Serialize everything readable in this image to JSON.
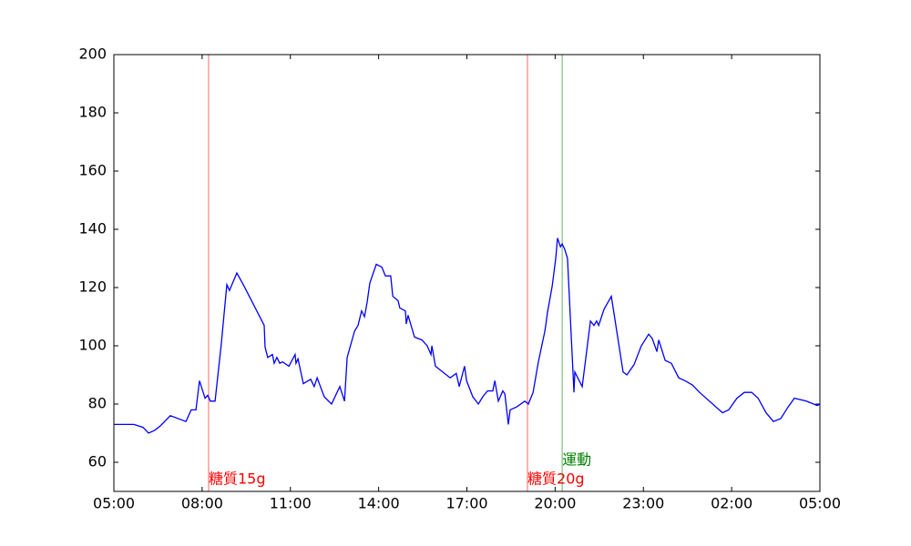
{
  "chart_data": {
    "type": "line",
    "xlim": [
      5,
      29
    ],
    "xticks": [
      {
        "value": 5,
        "label": "05:00"
      },
      {
        "value": 8,
        "label": "08:00"
      },
      {
        "value": 11,
        "label": "11:00"
      },
      {
        "value": 14,
        "label": "14:00"
      },
      {
        "value": 17,
        "label": "17:00"
      },
      {
        "value": 20,
        "label": "20:00"
      },
      {
        "value": 23,
        "label": "23:00"
      },
      {
        "value": 26,
        "label": "02:00"
      },
      {
        "value": 29,
        "label": "05:00"
      }
    ],
    "ylim": [
      50,
      200
    ],
    "yticks": [
      60,
      80,
      100,
      120,
      140,
      160,
      180,
      200
    ],
    "x": [
      5.0,
      5.68,
      5.99,
      6.18,
      6.39,
      6.58,
      6.92,
      7.45,
      7.63,
      7.79,
      7.91,
      8.1,
      8.19,
      8.28,
      8.44,
      8.65,
      8.84,
      8.93,
      9.18,
      9.4,
      9.68,
      10.11,
      10.14,
      10.23,
      10.39,
      10.45,
      10.54,
      10.64,
      10.73,
      10.95,
      11.16,
      11.19,
      11.26,
      11.44,
      11.69,
      11.81,
      11.91,
      12.15,
      12.4,
      12.68,
      12.84,
      12.93,
      13.18,
      13.3,
      13.42,
      13.52,
      13.61,
      13.7,
      13.92,
      14.11,
      14.23,
      14.41,
      14.48,
      14.66,
      14.72,
      14.91,
      14.94,
      15.0,
      15.22,
      15.47,
      15.65,
      15.78,
      15.81,
      15.93,
      16.43,
      16.64,
      16.74,
      16.92,
      16.99,
      17.2,
      17.39,
      17.54,
      17.7,
      17.88,
      17.95,
      18.07,
      18.22,
      18.29,
      18.41,
      18.47,
      18.69,
      18.97,
      19.09,
      19.25,
      19.43,
      19.65,
      19.68,
      19.74,
      19.9,
      20.02,
      20.08,
      20.18,
      20.24,
      20.33,
      20.42,
      20.64,
      20.67,
      20.92,
      21.2,
      21.32,
      21.41,
      21.48,
      21.66,
      21.91,
      22.31,
      22.44,
      22.68,
      22.93,
      23.18,
      23.3,
      23.46,
      23.52,
      23.74,
      23.95,
      24.2,
      24.42,
      24.67,
      24.91,
      25.69,
      25.9,
      26.18,
      26.43,
      26.68,
      26.9,
      27.17,
      27.42,
      27.67,
      27.92,
      28.13,
      28.54,
      28.91,
      29.0
    ],
    "series": [
      {
        "color": "#0000ff",
        "values": [
          73,
          73,
          72,
          70,
          71,
          72.5,
          76,
          74,
          78,
          78,
          88,
          82,
          83,
          81,
          81,
          100.5,
          121,
          119,
          125,
          121,
          115.5,
          107,
          99.5,
          96,
          97,
          94,
          96,
          94,
          94.5,
          93,
          97,
          94,
          95.5,
          87,
          88.5,
          86,
          89,
          82.5,
          80,
          86,
          81,
          96,
          105,
          107,
          112,
          110,
          115,
          121.5,
          128,
          127,
          124,
          124,
          117,
          115.5,
          113,
          112,
          107.5,
          110.5,
          103,
          102,
          100,
          97,
          100,
          93,
          89,
          90.5,
          86,
          93,
          88,
          82.5,
          80,
          82.5,
          84.5,
          84.5,
          88,
          81,
          84.5,
          83.5,
          73,
          78,
          79,
          81,
          80,
          84,
          94.5,
          105,
          107,
          111.5,
          120.5,
          130,
          137,
          134,
          135,
          133,
          130,
          84,
          91,
          86,
          108.5,
          107,
          108.5,
          107,
          112.5,
          117,
          91,
          90,
          93.5,
          100,
          104,
          102.5,
          98,
          102,
          95,
          94,
          89,
          88,
          86.5,
          84,
          77,
          78,
          82,
          84,
          84,
          82,
          77,
          74,
          75,
          79,
          82,
          81,
          79.5,
          80
        ]
      }
    ],
    "annotations": [
      {
        "x": 8.22,
        "label": "糖質15g",
        "color": "#ff0000"
      },
      {
        "x": 19.06,
        "label": "糖質20g",
        "color": "#ff0000"
      },
      {
        "x": 20.24,
        "label": "運動",
        "color": "#008000"
      }
    ]
  }
}
